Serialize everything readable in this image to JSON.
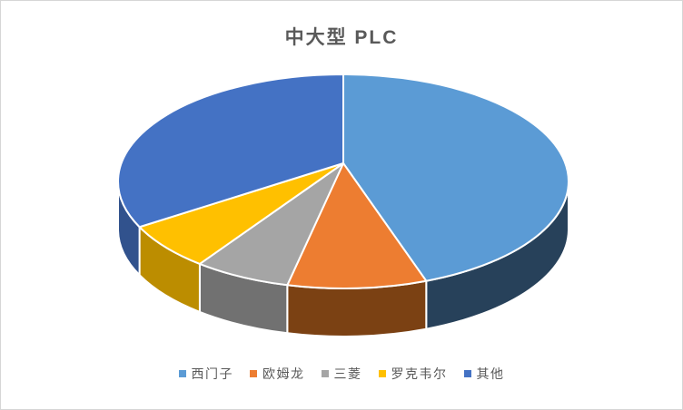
{
  "window": {
    "background": "#ffffff",
    "border_color": "#d6d6d6"
  },
  "chart_data": {
    "type": "pie",
    "style": "3d",
    "title": "中大型 PLC",
    "title_color": "#595959",
    "values_unit": "percent-estimated",
    "start_angle_deg": 0,
    "direction": "clockwise",
    "legend_position": "bottom",
    "series": [
      {
        "name": "西门子",
        "value": 44,
        "color": "#5B9BD5",
        "side_color": "#27415A"
      },
      {
        "name": "欧姆龙",
        "value": 10,
        "color": "#ED7D31",
        "side_color": "#7B4113"
      },
      {
        "name": "三菱",
        "value": 7,
        "color": "#A5A5A5",
        "side_color": "#717171"
      },
      {
        "name": "罗克韦尔",
        "value": 7,
        "color": "#FFC000",
        "side_color": "#BC8D00"
      },
      {
        "name": "其他",
        "value": 32,
        "color": "#4472C4",
        "side_color": "#31528D"
      }
    ]
  }
}
